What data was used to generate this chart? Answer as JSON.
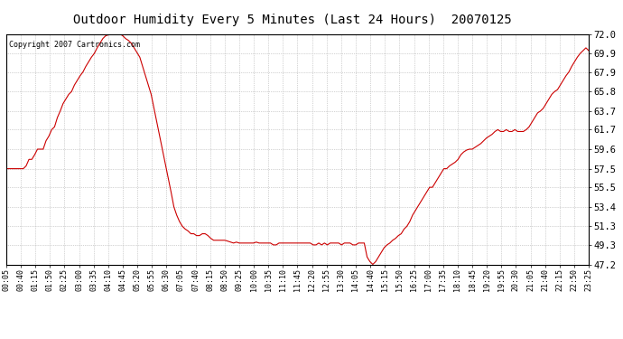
{
  "title": "Outdoor Humidity Every 5 Minutes (Last 24 Hours)  20070125",
  "copyright_text": "Copyright 2007 Cartronics.com",
  "line_color": "#cc0000",
  "bg_color": "#ffffff",
  "plot_bg_color": "#ffffff",
  "grid_color": "#aaaaaa",
  "ylim": [
    47.2,
    72.0
  ],
  "yticks": [
    47.2,
    49.3,
    51.3,
    53.4,
    55.5,
    57.5,
    59.6,
    61.7,
    63.7,
    65.8,
    67.9,
    69.9,
    72.0
  ],
  "x_labels": [
    "00:05",
    "00:40",
    "01:15",
    "01:50",
    "02:25",
    "03:00",
    "03:35",
    "04:10",
    "04:45",
    "05:20",
    "05:55",
    "06:30",
    "07:05",
    "07:40",
    "08:15",
    "08:50",
    "09:25",
    "10:00",
    "10:35",
    "11:10",
    "11:45",
    "12:20",
    "12:55",
    "13:30",
    "14:05",
    "14:40",
    "15:15",
    "15:50",
    "16:25",
    "17:00",
    "17:35",
    "18:10",
    "18:45",
    "19:20",
    "19:55",
    "20:30",
    "21:05",
    "21:40",
    "22:15",
    "22:50",
    "23:25"
  ],
  "humidity_values": [
    57.5,
    57.5,
    57.5,
    57.5,
    57.5,
    57.5,
    57.5,
    57.8,
    58.5,
    58.5,
    59.0,
    59.6,
    59.6,
    59.6,
    60.5,
    61.0,
    61.7,
    62.0,
    63.0,
    63.7,
    64.5,
    65.0,
    65.5,
    65.8,
    66.5,
    67.0,
    67.5,
    67.9,
    68.5,
    69.0,
    69.5,
    69.9,
    70.5,
    71.0,
    71.5,
    71.8,
    71.9,
    72.0,
    72.0,
    72.0,
    72.0,
    71.8,
    71.5,
    71.3,
    71.0,
    70.5,
    70.0,
    69.5,
    68.5,
    67.5,
    66.5,
    65.5,
    64.0,
    62.5,
    61.0,
    59.5,
    58.0,
    56.5,
    55.0,
    53.4,
    52.5,
    51.8,
    51.3,
    51.0,
    50.8,
    50.5,
    50.5,
    50.3,
    50.3,
    50.5,
    50.5,
    50.3,
    50.0,
    49.8,
    49.8,
    49.8,
    49.8,
    49.8,
    49.7,
    49.6,
    49.5,
    49.6,
    49.5,
    49.5,
    49.5,
    49.5,
    49.5,
    49.5,
    49.6,
    49.5,
    49.5,
    49.5,
    49.5,
    49.5,
    49.3,
    49.3,
    49.5,
    49.5,
    49.5,
    49.5,
    49.5,
    49.5,
    49.5,
    49.5,
    49.5,
    49.5,
    49.5,
    49.5,
    49.3,
    49.3,
    49.5,
    49.3,
    49.5,
    49.3,
    49.5,
    49.5,
    49.5,
    49.5,
    49.3,
    49.5,
    49.5,
    49.5,
    49.3,
    49.3,
    49.5,
    49.5,
    49.5,
    48.0,
    47.5,
    47.2,
    47.5,
    48.0,
    48.5,
    49.0,
    49.3,
    49.5,
    49.8,
    50.0,
    50.3,
    50.5,
    51.0,
    51.3,
    51.8,
    52.5,
    53.0,
    53.5,
    54.0,
    54.5,
    55.0,
    55.5,
    55.5,
    56.0,
    56.5,
    57.0,
    57.5,
    57.5,
    57.8,
    58.0,
    58.2,
    58.5,
    59.0,
    59.3,
    59.5,
    59.6,
    59.6,
    59.8,
    60.0,
    60.2,
    60.5,
    60.8,
    61.0,
    61.2,
    61.5,
    61.7,
    61.5,
    61.5,
    61.7,
    61.5,
    61.5,
    61.7,
    61.5,
    61.5,
    61.5,
    61.7,
    62.0,
    62.5,
    63.0,
    63.5,
    63.7,
    64.0,
    64.5,
    65.0,
    65.5,
    65.8,
    66.0,
    66.5,
    67.0,
    67.5,
    67.9,
    68.5,
    69.0,
    69.5,
    69.9,
    70.2,
    70.5,
    70.2
  ]
}
